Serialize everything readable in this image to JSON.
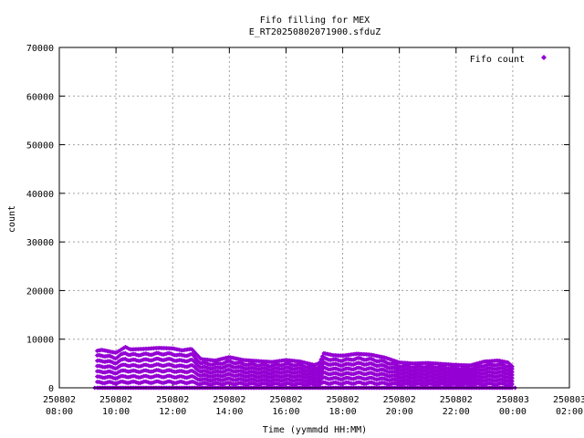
{
  "chart_data": {
    "type": "scatter",
    "title": [
      "Fifo filling for MEX",
      "E_RT20250802071900.sfduZ"
    ],
    "xlabel": "Time (yymmdd HH:MM)",
    "ylabel": "count",
    "xlim": [
      "2025-08-02 08:00",
      "2025-08-03 02:00"
    ],
    "ylim": [
      0,
      70000
    ],
    "grid": true,
    "legend_position": "top-right",
    "x_ticks": [
      {
        "date": "250802",
        "time": "08:00"
      },
      {
        "date": "250802",
        "time": "10:00"
      },
      {
        "date": "250802",
        "time": "12:00"
      },
      {
        "date": "250802",
        "time": "14:00"
      },
      {
        "date": "250802",
        "time": "16:00"
      },
      {
        "date": "250802",
        "time": "18:00"
      },
      {
        "date": "250802",
        "time": "20:00"
      },
      {
        "date": "250802",
        "time": "22:00"
      },
      {
        "date": "250803",
        "time": "00:00"
      },
      {
        "date": "250803",
        "time": "02:00"
      }
    ],
    "y_ticks": [
      "0",
      "10000",
      "20000",
      "30000",
      "40000",
      "50000",
      "60000",
      "70000"
    ],
    "series": [
      {
        "name": "Fifo count",
        "color": "#9400d3",
        "marker": "diamond",
        "envelope_x": [
          "2025-08-02 09:20",
          "2025-08-02 09:30",
          "2025-08-02 10:00",
          "2025-08-02 10:20",
          "2025-08-02 10:30",
          "2025-08-02 11:00",
          "2025-08-02 11:30",
          "2025-08-02 12:00",
          "2025-08-02 12:20",
          "2025-08-02 12:40",
          "2025-08-02 13:00",
          "2025-08-02 13:30",
          "2025-08-02 14:00",
          "2025-08-02 14:30",
          "2025-08-02 15:00",
          "2025-08-02 15:30",
          "2025-08-02 16:00",
          "2025-08-02 16:30",
          "2025-08-02 17:00",
          "2025-08-02 17:10",
          "2025-08-02 17:20",
          "2025-08-02 17:40",
          "2025-08-02 18:00",
          "2025-08-02 18:30",
          "2025-08-02 19:00",
          "2025-08-02 19:30",
          "2025-08-02 20:00",
          "2025-08-02 20:30",
          "2025-08-02 21:00",
          "2025-08-02 21:30",
          "2025-08-02 22:00",
          "2025-08-02 22:30",
          "2025-08-02 23:00",
          "2025-08-02 23:30",
          "2025-08-02 23:50",
          "2025-08-03 00:00"
        ],
        "envelope_y": [
          7600,
          7800,
          7200,
          8400,
          7900,
          8000,
          8200,
          8100,
          7700,
          8000,
          5900,
          5600,
          6300,
          5700,
          5500,
          5300,
          5700,
          5400,
          4700,
          5000,
          7100,
          6700,
          6600,
          7000,
          6800,
          6200,
          5200,
          5000,
          5100,
          4900,
          4700,
          4600,
          5400,
          5600,
          5200,
          4300
        ],
        "values": [
          {
            "x": "2025-08-02 09:15",
            "y": 0
          },
          {
            "x": "2025-08-02 09:20",
            "y": 7600
          },
          {
            "x": "2025-08-02 10:20",
            "y": 8400
          },
          {
            "x": "2025-08-02 11:30",
            "y": 8200
          },
          {
            "x": "2025-08-02 12:40",
            "y": 8000
          },
          {
            "x": "2025-08-02 13:30",
            "y": 5600
          },
          {
            "x": "2025-08-02 14:00",
            "y": 6300
          },
          {
            "x": "2025-08-02 15:30",
            "y": 5300
          },
          {
            "x": "2025-08-02 16:00",
            "y": 5700
          },
          {
            "x": "2025-08-02 17:00",
            "y": 4700
          },
          {
            "x": "2025-08-02 17:20",
            "y": 7100
          },
          {
            "x": "2025-08-02 18:30",
            "y": 7000
          },
          {
            "x": "2025-08-02 20:00",
            "y": 5200
          },
          {
            "x": "2025-08-02 22:00",
            "y": 4700
          },
          {
            "x": "2025-08-02 23:30",
            "y": 5600
          },
          {
            "x": "2025-08-03 00:00",
            "y": 4300
          },
          {
            "x": "2025-08-03 00:05",
            "y": 0
          }
        ]
      }
    ]
  }
}
